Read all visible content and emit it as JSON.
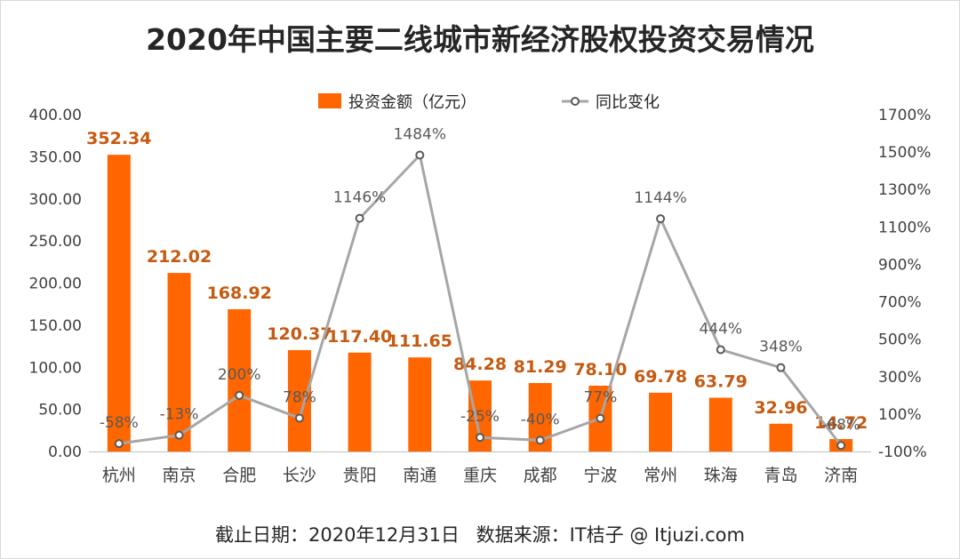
{
  "title": "2020年中国主要二线城市新经济股权投资交易情况",
  "footer": {
    "date_text": "截止日期：2020年12月31日",
    "source_text": "数据来源：IT桔子 @ Itjuzi.com"
  },
  "colors": {
    "bar": "#ff6600",
    "line": "#a6a6a6",
    "bar_label": "#c55a11"
  },
  "chart_data": {
    "type": "bar",
    "categories": [
      "杭州",
      "南京",
      "合肥",
      "长沙",
      "贵阳",
      "南通",
      "重庆",
      "成都",
      "宁波",
      "常州",
      "珠海",
      "青岛",
      "济南"
    ],
    "series": [
      {
        "name": "投资金额（亿元）",
        "type": "bar",
        "axis": "left",
        "values": [
          352.34,
          212.02,
          168.92,
          120.37,
          117.4,
          111.65,
          84.28,
          81.29,
          78.1,
          69.78,
          63.79,
          32.96,
          14.72
        ],
        "labels": [
          "352.34",
          "212.02",
          "168.92",
          "120.37",
          "117.40",
          "111.65",
          "84.28",
          "81.29",
          "78.10",
          "69.78",
          "63.79",
          "32.96",
          "14.72"
        ]
      },
      {
        "name": "同比变化",
        "type": "line",
        "axis": "right",
        "values": [
          -58,
          -13,
          200,
          78,
          1146,
          1484,
          -25,
          -40,
          77,
          1144,
          444,
          348,
          -68
        ],
        "labels": [
          "-58%",
          "-13%",
          "200%",
          "78%",
          "1146%",
          "1484%",
          "-25%",
          "-40%",
          "77%",
          "1144%",
          "444%",
          "348%",
          "-68%"
        ]
      }
    ],
    "left_axis": {
      "ylim": [
        0,
        400
      ],
      "ticks": [
        "0.00",
        "50.00",
        "100.00",
        "150.00",
        "200.00",
        "250.00",
        "300.00",
        "350.00",
        "400.00"
      ]
    },
    "right_axis": {
      "ylim": [
        -100,
        1700
      ],
      "ticks": [
        "-100%",
        "100%",
        "300%",
        "500%",
        "700%",
        "900%",
        "1100%",
        "1300%",
        "1500%",
        "1700%"
      ]
    },
    "legend_position": "top-center",
    "grid": false
  }
}
